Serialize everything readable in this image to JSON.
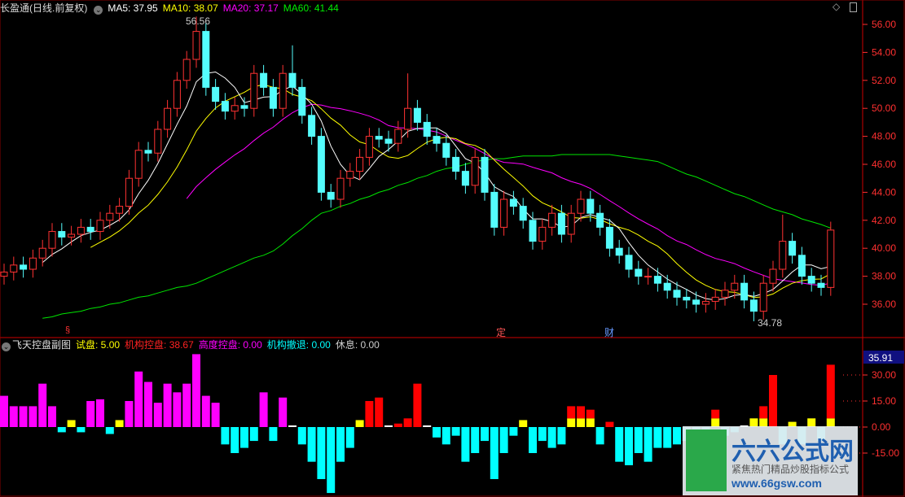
{
  "header": {
    "title": "长盈通(日线.前复权)",
    "ma5": "MA5: 37.95",
    "ma10": "MA10: 38.07",
    "ma20": "MA20: 37.17",
    "ma60": "MA60: 41.44"
  },
  "sub_header": {
    "title": "飞天控盘副图",
    "trial": "试盘: 5.00",
    "inst_control": "机构控盘: 38.67",
    "high_control": "高度控盘: 0.00",
    "inst_retreat": "机构撤退: 0.00",
    "rest": "休息: 0.00"
  },
  "colors": {
    "up": "#ff3232",
    "down": "#54fcfc",
    "ma5": "#ffffff",
    "ma10": "#ffff00",
    "ma20": "#ff00ff",
    "ma60": "#00e600",
    "axis": "#ff3030",
    "high_control": "#ff00ff",
    "inst_control": "#ff0000",
    "trial": "#ffff00",
    "retreat": "#00ffff"
  },
  "annotations": {
    "high_label": "56.56",
    "low_label": "34.78",
    "marker_1": "§",
    "marker_2": "定",
    "marker_3": "财"
  },
  "icons": {
    "collapse": "chevron-down-circle-icon",
    "top_right_1": "diamond-icon",
    "top_right_2": "square-icon"
  },
  "logo": {
    "name": "六六公式网",
    "tagline": "紧焦热门精品炒股指标公式",
    "url": "www.66gsw.com"
  },
  "chart_data": [
    {
      "type": "candlestick",
      "yticks": [
        56,
        54,
        52,
        50,
        48,
        46,
        44,
        42,
        40,
        38,
        36
      ],
      "ytick_labels": [
        "56.00",
        "54.00",
        "52.00",
        "50.00",
        "48.00",
        "46.00",
        "44.00",
        "42.00",
        "40.00",
        "38.00",
        "36.00"
      ],
      "ylim": [
        35,
        56.6
      ],
      "open": [
        38.0,
        38.3,
        38.8,
        38.5,
        39.3,
        40,
        41.2,
        40.8,
        41,
        41.5,
        41.2,
        42,
        42.5,
        43,
        45,
        47,
        46.8,
        48.5,
        50,
        52,
        53.5,
        55.5,
        51.5,
        50.5,
        49.8,
        50.2,
        50,
        52.5,
        51.5,
        50,
        52.5,
        51.5,
        49.5,
        48,
        44,
        43.5,
        45,
        45.5,
        46.5,
        48,
        47.8,
        47.5,
        48.5,
        50,
        49,
        48,
        47.5,
        46.5,
        45.5,
        44.5,
        46.5,
        44,
        41.5,
        43.5,
        43,
        42,
        40.5,
        41.5,
        42.5,
        41,
        42.5,
        43.5,
        42.5,
        41.5,
        40,
        39.5,
        38.5,
        38,
        38,
        37.5,
        37,
        36.5,
        36.3,
        36,
        36.2,
        36.5,
        37,
        37.5,
        36.3,
        35.5,
        37.5,
        38.5,
        40.5,
        39.5,
        38,
        37.5,
        37.2
      ],
      "high": [
        38.9,
        39.4,
        39.4,
        39.9,
        40.6,
        41.8,
        41.8,
        41.6,
        42.1,
        42.1,
        42.6,
        43.1,
        43.6,
        45.6,
        47.6,
        47.6,
        49.1,
        50.6,
        52.6,
        54.1,
        56.56,
        56.1,
        52.1,
        51.1,
        50.8,
        50.8,
        53.1,
        53.1,
        52.1,
        53.1,
        54.5,
        52.1,
        50.1,
        48.6,
        44.6,
        45.6,
        46.1,
        47.1,
        48.6,
        48.6,
        48.4,
        49.1,
        52.5,
        50.6,
        49.6,
        48.6,
        48.1,
        47.1,
        46.1,
        47.1,
        47.1,
        44.6,
        44.1,
        44.1,
        43.6,
        42.6,
        42.1,
        43.1,
        43.1,
        43.1,
        44.1,
        44.1,
        43.1,
        42.1,
        40.6,
        40.1,
        39.1,
        38.6,
        38.6,
        38.1,
        37.6,
        37.1,
        36.9,
        36.8,
        37.1,
        37.6,
        38.1,
        38.1,
        36.9,
        38.1,
        39.1,
        42.4,
        41.1,
        40.1,
        38.6,
        38.1,
        41.9
      ],
      "low": [
        37.4,
        37.7,
        37.9,
        37.9,
        38.7,
        39.4,
        40.2,
        40.2,
        40.4,
        40.6,
        40.6,
        41.4,
        41.9,
        42.4,
        44.4,
        46.2,
        46.2,
        47.9,
        49.4,
        51.4,
        52.9,
        50.9,
        49.9,
        49.2,
        49.2,
        49.4,
        49.4,
        50.9,
        49.4,
        49.4,
        50.9,
        48.9,
        47.4,
        43.4,
        42.9,
        42.9,
        44.4,
        44.9,
        45.9,
        47.2,
        46.9,
        46.9,
        47.9,
        48.4,
        47.4,
        46.9,
        45.9,
        44.9,
        43.9,
        43.9,
        43.4,
        40.9,
        40.9,
        42.4,
        41.4,
        39.9,
        39.9,
        40.9,
        40.4,
        40.4,
        41.9,
        41.9,
        40.9,
        39.4,
        38.9,
        37.9,
        37.4,
        37.4,
        36.9,
        36.4,
        35.9,
        35.7,
        35.4,
        35.4,
        35.6,
        35.9,
        36.4,
        35.7,
        34.78,
        34.9,
        36.9,
        37.9,
        38.9,
        37.4,
        36.9,
        36.6,
        36.6
      ],
      "close": [
        38.3,
        38.8,
        38.5,
        39.3,
        40,
        41.2,
        40.8,
        41,
        41.5,
        41.2,
        42,
        42.5,
        43,
        45,
        47,
        46.8,
        48.5,
        50,
        52,
        53.5,
        55.5,
        51.5,
        50.5,
        49.8,
        50.2,
        50,
        52.5,
        51.5,
        50,
        52.5,
        51.5,
        49.5,
        48,
        44,
        43.5,
        45,
        45.5,
        46.5,
        48,
        47.8,
        47.5,
        48.5,
        50,
        49,
        48,
        47.5,
        46.5,
        45.5,
        44.5,
        46.5,
        44,
        41.5,
        43.5,
        43,
        42,
        40.5,
        41.5,
        42.5,
        41,
        42.5,
        43.5,
        42.5,
        41.5,
        40,
        39.5,
        38.5,
        38,
        38,
        37.5,
        37,
        36.5,
        36.3,
        36,
        36.2,
        36.5,
        37,
        37.5,
        36.3,
        35.5,
        37.5,
        38.5,
        40.5,
        39.5,
        38,
        37.5,
        37.2,
        41.3
      ],
      "ma60": [
        null,
        null,
        null,
        null,
        35.0,
        35.1,
        35.3,
        35.4,
        35.5,
        35.7,
        35.8,
        36.0,
        36.1,
        36.3,
        36.5,
        36.6,
        36.8,
        37.0,
        37.2,
        37.3,
        37.5,
        37.8,
        38.1,
        38.4,
        38.7,
        39.0,
        39.3,
        39.5,
        39.8,
        40.3,
        40.9,
        41.4,
        42.0,
        42.5,
        42.7,
        43.0,
        43.2,
        43.5,
        43.7,
        44.0,
        44.2,
        44.5,
        44.7,
        45.0,
        45.2,
        45.5,
        45.7,
        45.8,
        46.0,
        46.2,
        46.3,
        46.4,
        46.4,
        46.5,
        46.6,
        46.6,
        46.6,
        46.6,
        46.7,
        46.7,
        46.7,
        46.7,
        46.7,
        46.7,
        46.6,
        46.5,
        46.4,
        46.3,
        46.2,
        45.9,
        45.6,
        45.3,
        45.1,
        44.8,
        44.5,
        44.2,
        43.9,
        43.7,
        43.4,
        43.1,
        42.8,
        42.6,
        42.4,
        42.1,
        41.9,
        41.7,
        41.44
      ],
      "series": [
        "MA5",
        "MA10",
        "MA20",
        "MA60"
      ]
    },
    {
      "type": "bar",
      "yticks": [
        30,
        15,
        0,
        -15
      ],
      "ytick_labels": [
        "30.00",
        "15.00",
        "0.00",
        "-15.00"
      ],
      "ylim": [
        -40,
        42
      ],
      "last_value_label": "35.91",
      "values": [
        18,
        12,
        12,
        12,
        25,
        12,
        -3,
        4,
        -3,
        15,
        16,
        -4,
        4,
        15,
        32,
        26,
        14,
        25,
        20,
        25,
        42,
        18,
        14,
        -10,
        -15,
        -12,
        -8,
        20,
        -8,
        17,
        0,
        -10,
        -20,
        -30,
        -38,
        -20,
        -12,
        4,
        15,
        17,
        0,
        2,
        5,
        25,
        0,
        -6,
        -10,
        -5,
        -20,
        -15,
        -8,
        -30,
        -15,
        -5,
        4,
        -15,
        -8,
        -12,
        -10,
        12,
        12,
        10,
        -10,
        3,
        -20,
        -22,
        -15,
        -20,
        -12,
        -12,
        -10,
        -8,
        -6,
        -5,
        10,
        -5,
        -3,
        0,
        5,
        12,
        30,
        -10,
        3,
        -10,
        5,
        -8,
        35.91
      ],
      "kinds": [
        "m",
        "m",
        "m",
        "m",
        "m",
        "m",
        "c",
        "y",
        "c",
        "m",
        "m",
        "c",
        "y",
        "m",
        "m",
        "m",
        "m",
        "m",
        "m",
        "m",
        "m",
        "m",
        "m",
        "c",
        "c",
        "c",
        "c",
        "m",
        "c",
        "m",
        "w",
        "c",
        "c",
        "c",
        "c",
        "c",
        "c",
        "y",
        "r",
        "r",
        "w",
        "r",
        "r",
        "r",
        "w",
        "c",
        "c",
        "c",
        "c",
        "c",
        "c",
        "c",
        "c",
        "c",
        "y",
        "c",
        "c",
        "c",
        "c",
        "ry",
        "ry",
        "ry",
        "c",
        "r",
        "c",
        "c",
        "c",
        "c",
        "c",
        "c",
        "c",
        "c",
        "c",
        "c",
        "ry",
        "c",
        "c",
        "w",
        "y",
        "ry",
        "r",
        "c",
        "y",
        "c",
        "y",
        "c",
        "ry"
      ]
    }
  ]
}
